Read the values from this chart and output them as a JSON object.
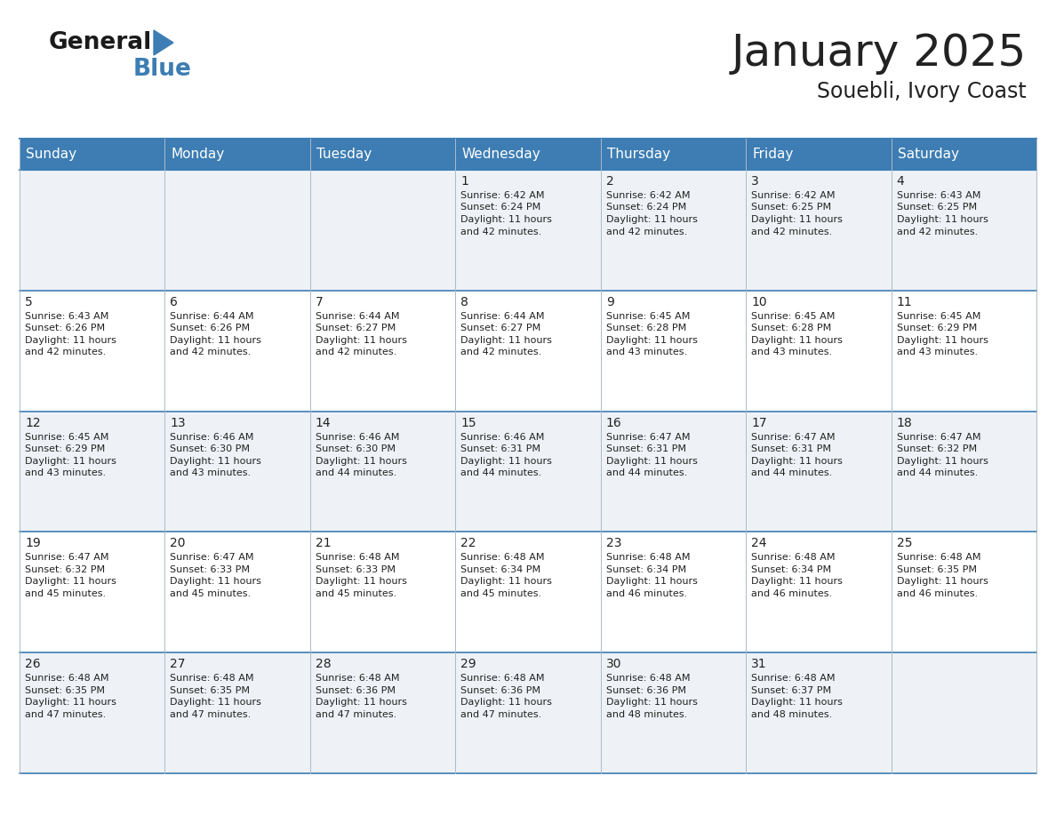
{
  "title": "January 2025",
  "subtitle": "Souebli, Ivory Coast",
  "header_color": "#3d7db3",
  "header_text_color": "#ffffff",
  "cell_bg_gray": "#eef2f6",
  "cell_bg_white": "#ffffff",
  "border_color": "#3d7db3",
  "inner_line_color": "#3d7db3",
  "day_names": [
    "Sunday",
    "Monday",
    "Tuesday",
    "Wednesday",
    "Thursday",
    "Friday",
    "Saturday"
  ],
  "days": [
    {
      "day": 1,
      "col": 3,
      "row": 0,
      "sunrise": "6:42 AM",
      "sunset": "6:24 PM",
      "daylight_hours": 11,
      "daylight_minutes": 42
    },
    {
      "day": 2,
      "col": 4,
      "row": 0,
      "sunrise": "6:42 AM",
      "sunset": "6:24 PM",
      "daylight_hours": 11,
      "daylight_minutes": 42
    },
    {
      "day": 3,
      "col": 5,
      "row": 0,
      "sunrise": "6:42 AM",
      "sunset": "6:25 PM",
      "daylight_hours": 11,
      "daylight_minutes": 42
    },
    {
      "day": 4,
      "col": 6,
      "row": 0,
      "sunrise": "6:43 AM",
      "sunset": "6:25 PM",
      "daylight_hours": 11,
      "daylight_minutes": 42
    },
    {
      "day": 5,
      "col": 0,
      "row": 1,
      "sunrise": "6:43 AM",
      "sunset": "6:26 PM",
      "daylight_hours": 11,
      "daylight_minutes": 42
    },
    {
      "day": 6,
      "col": 1,
      "row": 1,
      "sunrise": "6:44 AM",
      "sunset": "6:26 PM",
      "daylight_hours": 11,
      "daylight_minutes": 42
    },
    {
      "day": 7,
      "col": 2,
      "row": 1,
      "sunrise": "6:44 AM",
      "sunset": "6:27 PM",
      "daylight_hours": 11,
      "daylight_minutes": 42
    },
    {
      "day": 8,
      "col": 3,
      "row": 1,
      "sunrise": "6:44 AM",
      "sunset": "6:27 PM",
      "daylight_hours": 11,
      "daylight_minutes": 42
    },
    {
      "day": 9,
      "col": 4,
      "row": 1,
      "sunrise": "6:45 AM",
      "sunset": "6:28 PM",
      "daylight_hours": 11,
      "daylight_minutes": 43
    },
    {
      "day": 10,
      "col": 5,
      "row": 1,
      "sunrise": "6:45 AM",
      "sunset": "6:28 PM",
      "daylight_hours": 11,
      "daylight_minutes": 43
    },
    {
      "day": 11,
      "col": 6,
      "row": 1,
      "sunrise": "6:45 AM",
      "sunset": "6:29 PM",
      "daylight_hours": 11,
      "daylight_minutes": 43
    },
    {
      "day": 12,
      "col": 0,
      "row": 2,
      "sunrise": "6:45 AM",
      "sunset": "6:29 PM",
      "daylight_hours": 11,
      "daylight_minutes": 43
    },
    {
      "day": 13,
      "col": 1,
      "row": 2,
      "sunrise": "6:46 AM",
      "sunset": "6:30 PM",
      "daylight_hours": 11,
      "daylight_minutes": 43
    },
    {
      "day": 14,
      "col": 2,
      "row": 2,
      "sunrise": "6:46 AM",
      "sunset": "6:30 PM",
      "daylight_hours": 11,
      "daylight_minutes": 44
    },
    {
      "day": 15,
      "col": 3,
      "row": 2,
      "sunrise": "6:46 AM",
      "sunset": "6:31 PM",
      "daylight_hours": 11,
      "daylight_minutes": 44
    },
    {
      "day": 16,
      "col": 4,
      "row": 2,
      "sunrise": "6:47 AM",
      "sunset": "6:31 PM",
      "daylight_hours": 11,
      "daylight_minutes": 44
    },
    {
      "day": 17,
      "col": 5,
      "row": 2,
      "sunrise": "6:47 AM",
      "sunset": "6:31 PM",
      "daylight_hours": 11,
      "daylight_minutes": 44
    },
    {
      "day": 18,
      "col": 6,
      "row": 2,
      "sunrise": "6:47 AM",
      "sunset": "6:32 PM",
      "daylight_hours": 11,
      "daylight_minutes": 44
    },
    {
      "day": 19,
      "col": 0,
      "row": 3,
      "sunrise": "6:47 AM",
      "sunset": "6:32 PM",
      "daylight_hours": 11,
      "daylight_minutes": 45
    },
    {
      "day": 20,
      "col": 1,
      "row": 3,
      "sunrise": "6:47 AM",
      "sunset": "6:33 PM",
      "daylight_hours": 11,
      "daylight_minutes": 45
    },
    {
      "day": 21,
      "col": 2,
      "row": 3,
      "sunrise": "6:48 AM",
      "sunset": "6:33 PM",
      "daylight_hours": 11,
      "daylight_minutes": 45
    },
    {
      "day": 22,
      "col": 3,
      "row": 3,
      "sunrise": "6:48 AM",
      "sunset": "6:34 PM",
      "daylight_hours": 11,
      "daylight_minutes": 45
    },
    {
      "day": 23,
      "col": 4,
      "row": 3,
      "sunrise": "6:48 AM",
      "sunset": "6:34 PM",
      "daylight_hours": 11,
      "daylight_minutes": 46
    },
    {
      "day": 24,
      "col": 5,
      "row": 3,
      "sunrise": "6:48 AM",
      "sunset": "6:34 PM",
      "daylight_hours": 11,
      "daylight_minutes": 46
    },
    {
      "day": 25,
      "col": 6,
      "row": 3,
      "sunrise": "6:48 AM",
      "sunset": "6:35 PM",
      "daylight_hours": 11,
      "daylight_minutes": 46
    },
    {
      "day": 26,
      "col": 0,
      "row": 4,
      "sunrise": "6:48 AM",
      "sunset": "6:35 PM",
      "daylight_hours": 11,
      "daylight_minutes": 47
    },
    {
      "day": 27,
      "col": 1,
      "row": 4,
      "sunrise": "6:48 AM",
      "sunset": "6:35 PM",
      "daylight_hours": 11,
      "daylight_minutes": 47
    },
    {
      "day": 28,
      "col": 2,
      "row": 4,
      "sunrise": "6:48 AM",
      "sunset": "6:36 PM",
      "daylight_hours": 11,
      "daylight_minutes": 47
    },
    {
      "day": 29,
      "col": 3,
      "row": 4,
      "sunrise": "6:48 AM",
      "sunset": "6:36 PM",
      "daylight_hours": 11,
      "daylight_minutes": 47
    },
    {
      "day": 30,
      "col": 4,
      "row": 4,
      "sunrise": "6:48 AM",
      "sunset": "6:36 PM",
      "daylight_hours": 11,
      "daylight_minutes": 48
    },
    {
      "day": 31,
      "col": 5,
      "row": 4,
      "sunrise": "6:48 AM",
      "sunset": "6:37 PM",
      "daylight_hours": 11,
      "daylight_minutes": 48
    }
  ],
  "num_rows": 5,
  "text_color": "#222222",
  "logo_general_color": "#1a1a1a",
  "logo_blue_color": "#3d7db3",
  "title_fontsize": 36,
  "subtitle_fontsize": 17,
  "header_fontsize": 11,
  "day_num_fontsize": 10,
  "cell_text_fontsize": 8
}
